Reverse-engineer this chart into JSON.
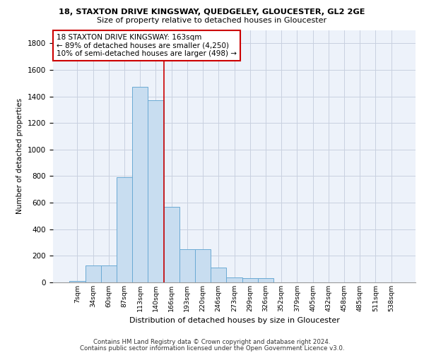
{
  "title1": "18, STAXTON DRIVE KINGSWAY, QUEDGELEY, GLOUCESTER, GL2 2GE",
  "title2": "Size of property relative to detached houses in Gloucester",
  "xlabel": "Distribution of detached houses by size in Gloucester",
  "ylabel": "Number of detached properties",
  "bar_color": "#c8ddf0",
  "bar_edge_color": "#6aaad4",
  "categories": [
    "7sqm",
    "34sqm",
    "60sqm",
    "87sqm",
    "113sqm",
    "140sqm",
    "166sqm",
    "193sqm",
    "220sqm",
    "246sqm",
    "273sqm",
    "299sqm",
    "326sqm",
    "352sqm",
    "379sqm",
    "405sqm",
    "432sqm",
    "458sqm",
    "485sqm",
    "511sqm",
    "538sqm"
  ],
  "values": [
    10,
    130,
    130,
    790,
    1470,
    1370,
    570,
    250,
    250,
    110,
    35,
    30,
    30,
    0,
    0,
    0,
    0,
    0,
    0,
    0,
    0
  ],
  "annotation_text": "18 STAXTON DRIVE KINGSWAY: 163sqm\n← 89% of detached houses are smaller (4,250)\n10% of semi-detached houses are larger (498) →",
  "annotation_box_color": "#ffffff",
  "annotation_border_color": "#cc0000",
  "vline_color": "#cc0000",
  "vline_x_index": 6,
  "ylim": [
    0,
    1900
  ],
  "yticks": [
    0,
    200,
    400,
    600,
    800,
    1000,
    1200,
    1400,
    1600,
    1800
  ],
  "footer1": "Contains HM Land Registry data © Crown copyright and database right 2024.",
  "footer2": "Contains public sector information licensed under the Open Government Licence v3.0.",
  "bg_color": "#edf2fa",
  "grid_color": "#c8d0e0"
}
